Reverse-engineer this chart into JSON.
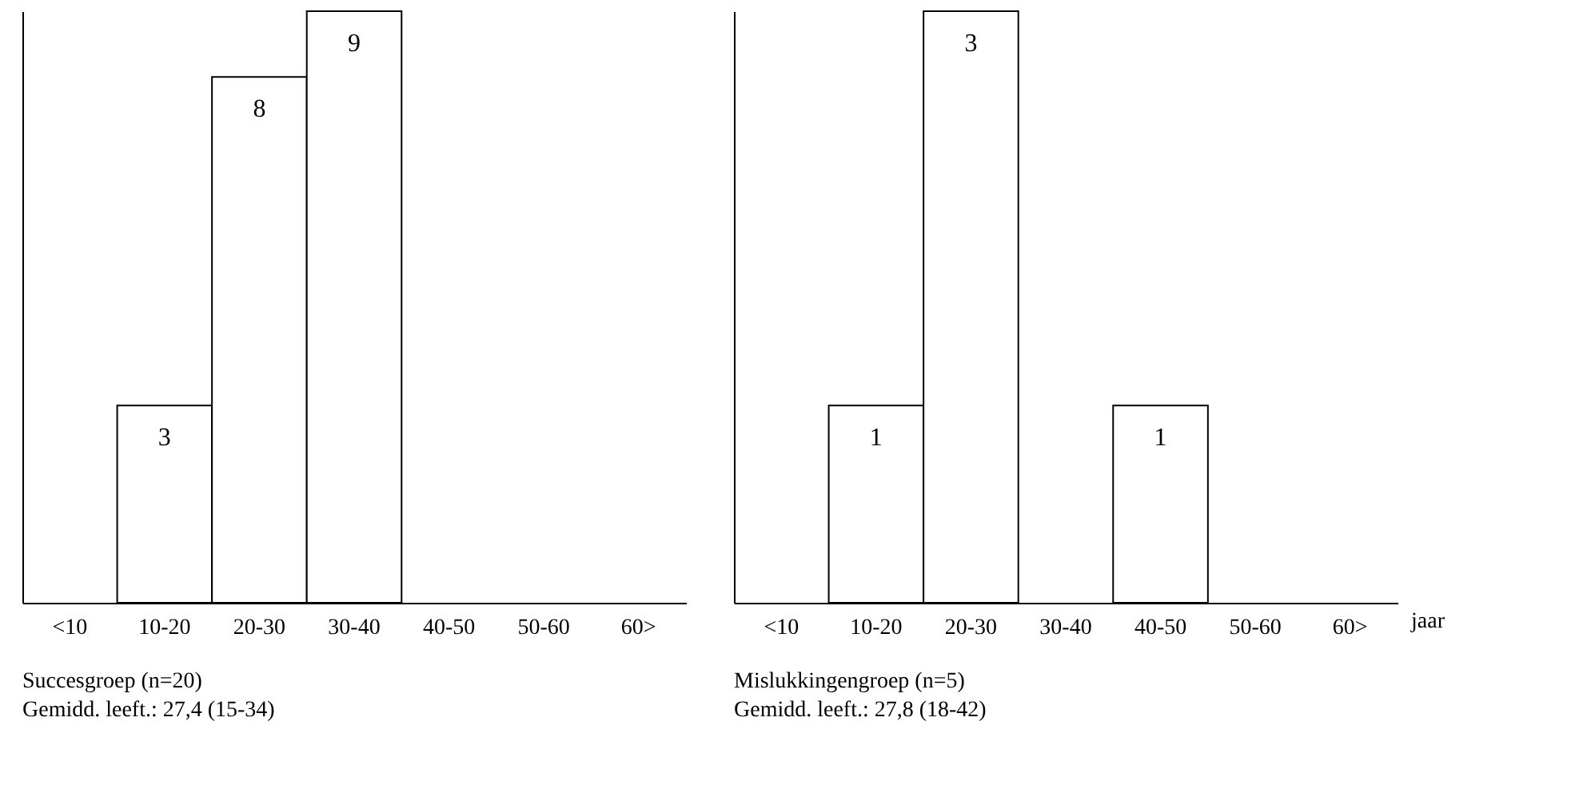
{
  "chart_data": [
    {
      "type": "bar",
      "title": "Succesgroep (n=20)",
      "subtitle": "Gemidd. leeft.: 27,4 (15-34)",
      "categories": [
        "<10",
        "10-20",
        "20-30",
        "30-40",
        "40-50",
        "50-60",
        "60>"
      ],
      "values": [
        0,
        3,
        8,
        9,
        0,
        0,
        0
      ],
      "value_labels": [
        null,
        "3",
        "8",
        "9",
        null,
        null,
        null
      ],
      "color": "#ffffff",
      "tick_labels": "x",
      "grid": false
    },
    {
      "type": "bar",
      "title": "Mislukkingengroep (n=5)",
      "subtitle": "Gemidd. leeft.: 27,8 (18-42)",
      "xlabel": "jaar",
      "categories": [
        "<10",
        "10-20",
        "20-30",
        "30-40",
        "40-50",
        "50-60",
        "60>"
      ],
      "values": [
        0,
        1,
        3,
        0,
        1,
        0,
        0
      ],
      "value_labels": [
        null,
        "1",
        "3",
        null,
        "1",
        null,
        null
      ],
      "color": "#ffffff",
      "tick_labels": "x",
      "grid": false
    }
  ]
}
